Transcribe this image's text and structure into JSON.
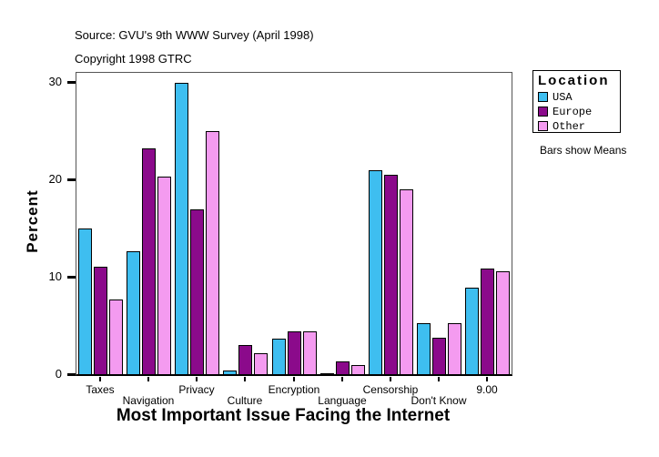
{
  "header": {
    "source": "Source: GVU's 9th WWW Survey (April 1998)",
    "copyright": "Copyright 1998 GTRC"
  },
  "legend": {
    "title": "Location",
    "items": [
      {
        "label": "USA",
        "color": "#3EBEF0"
      },
      {
        "label": "Europe",
        "color": "#8B0A8B"
      },
      {
        "label": "Other",
        "color": "#F49BF0"
      }
    ],
    "note": "Bars show Means"
  },
  "chart_data": {
    "type": "bar",
    "title": "",
    "xlabel": "Most Important Issue Facing the Internet",
    "ylabel": "Percent",
    "ylim": [
      0,
      31
    ],
    "yticks": [
      0,
      10,
      20,
      30
    ],
    "grid": false,
    "legend_position": "right",
    "annotation": "Bars show Means",
    "categories": [
      "Taxes",
      "Navigation",
      "Privacy",
      "Culture",
      "Encryption",
      "Language",
      "Censorship",
      "Don't Know",
      "9.00"
    ],
    "series": [
      {
        "name": "USA",
        "color": "#3EBEF0",
        "values": [
          15.0,
          12.7,
          30.0,
          0.5,
          3.7,
          0.2,
          21.0,
          5.3,
          9.0
        ]
      },
      {
        "name": "Europe",
        "color": "#8B0A8B",
        "values": [
          11.1,
          23.3,
          17.0,
          3.1,
          4.5,
          1.4,
          20.6,
          3.8,
          10.9
        ]
      },
      {
        "name": "Other",
        "color": "#F49BF0",
        "values": [
          7.8,
          20.4,
          25.0,
          2.2,
          4.5,
          1.0,
          19.1,
          5.3,
          10.7
        ]
      }
    ]
  }
}
